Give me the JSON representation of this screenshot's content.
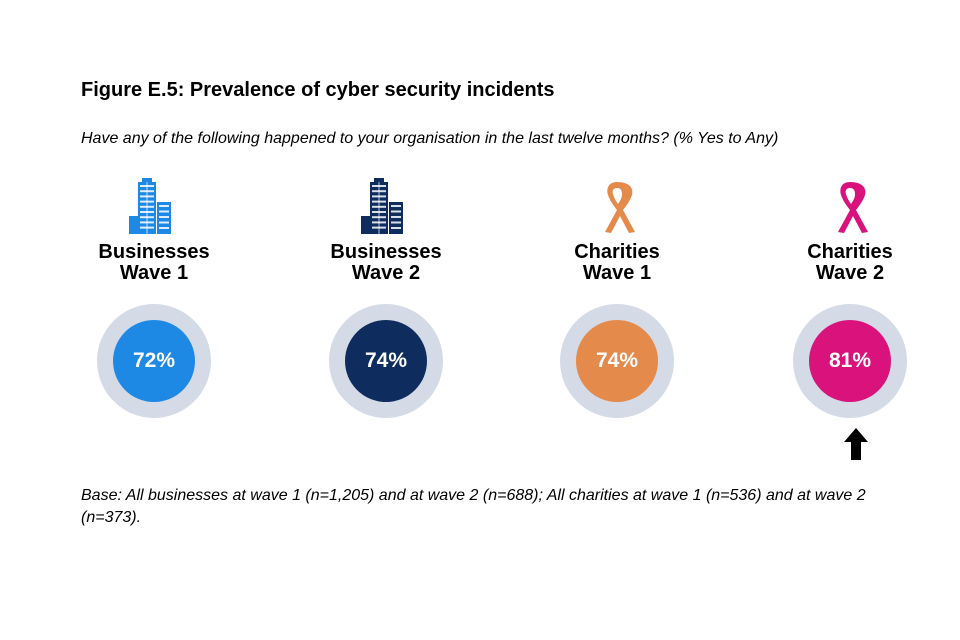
{
  "chart_data": {
    "type": "bar",
    "title": "Figure E.5: Prevalence of cyber security incidents",
    "subtitle": "Have any of the following happened to your organisation in the last twelve months? (% Yes to Any)",
    "categories": [
      {
        "line1": "Businesses",
        "line2": "Wave 1"
      },
      {
        "line1": "Businesses",
        "line2": "Wave 2"
      },
      {
        "line1": "Charities",
        "line2": "Wave 1"
      },
      {
        "line1": "Charities",
        "line2": "Wave 2"
      }
    ],
    "values": [
      72,
      74,
      74,
      81
    ],
    "value_labels": [
      "72%",
      "74%",
      "74%",
      "81%"
    ],
    "unit": "%",
    "icons": [
      "office-building-icon",
      "office-building-icon",
      "ribbon-icon",
      "ribbon-icon"
    ],
    "annotations": [
      {
        "category_index": 3,
        "marker": "significant-increase-arrow"
      }
    ],
    "base_note": "Base: All businesses at wave 1 (n=1,205) and at wave 2 (n=688); All charities at wave 1 (n=536) and at wave 2 (n=373)."
  },
  "colors": {
    "businesses_wave1": "#1e88e5",
    "businesses_wave2": "#0e2c5e",
    "charities_wave1": "#e48a4a",
    "charities_wave2": "#d9127c",
    "ring": "#d4dae6",
    "arrow": "#000000"
  }
}
